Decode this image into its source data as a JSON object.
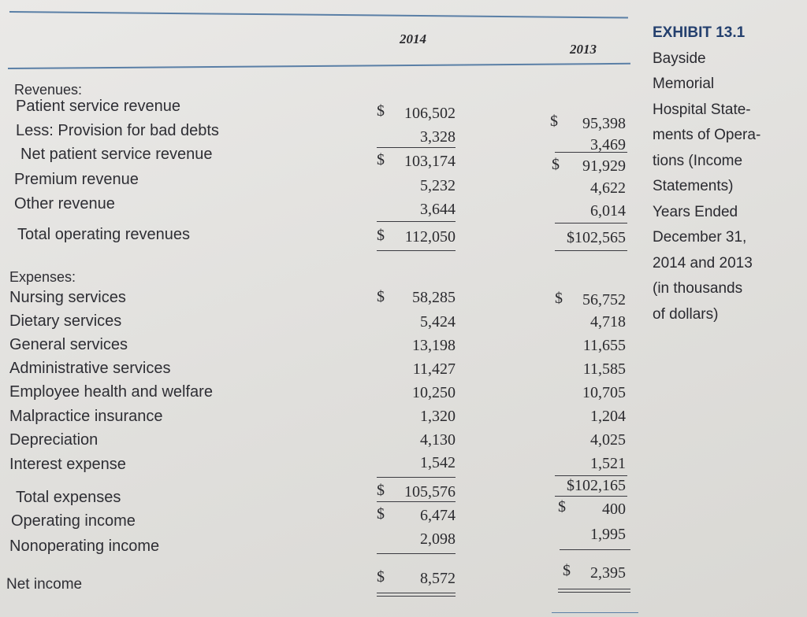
{
  "columns": {
    "y2014": "2014",
    "y2013": "2013"
  },
  "exhibit": {
    "title": "EXHIBIT 13.1",
    "lines": [
      "Bayside",
      "Memorial",
      "Hospital State-",
      "ments of Opera-",
      "tions (Income",
      "Statements)",
      "Years Ended",
      "December 31,",
      "2014 and 2013",
      "(in thousands",
      "of dollars)"
    ]
  },
  "currency_symbol": "$",
  "revenues": {
    "heading": "Revenues:",
    "rows": [
      {
        "label": "Patient service revenue",
        "y2014": "106,502",
        "y2013": "95,398"
      },
      {
        "label": "Less: Provision for bad debts",
        "y2014": "3,328",
        "y2013": "3,469"
      },
      {
        "label": "Net patient service revenue",
        "y2014": "103,174",
        "y2013": "91,929"
      },
      {
        "label": "Premium revenue",
        "y2014": "5,232",
        "y2013": "4,622"
      },
      {
        "label": "Other revenue",
        "y2014": "3,644",
        "y2013": "6,014"
      },
      {
        "label": "Total operating revenues",
        "y2014": "112,050",
        "y2013": "$102,565"
      }
    ]
  },
  "expenses": {
    "heading": "Expenses:",
    "rows": [
      {
        "label": "Nursing services",
        "y2014": "58,285",
        "y2013": "56,752"
      },
      {
        "label": "Dietary services",
        "y2014": "5,424",
        "y2013": "4,718"
      },
      {
        "label": "General services",
        "y2014": "13,198",
        "y2013": "11,655"
      },
      {
        "label": "Administrative services",
        "y2014": "11,427",
        "y2013": "11,585"
      },
      {
        "label": "Employee health and welfare",
        "y2014": "10,250",
        "y2013": "10,705"
      },
      {
        "label": "Malpractice insurance",
        "y2014": "1,320",
        "y2013": "1,204"
      },
      {
        "label": "Depreciation",
        "y2014": "4,130",
        "y2013": "4,025"
      },
      {
        "label": "Interest expense",
        "y2014": "1,542",
        "y2013": "1,521"
      }
    ]
  },
  "totals": {
    "total_expenses": {
      "label": "Total expenses",
      "y2014": "105,576",
      "y2013": "$102,165"
    },
    "operating_income": {
      "label": "Operating income",
      "y2014": "6,474",
      "y2013": "400"
    },
    "nonoperating_income": {
      "label": "Nonoperating income",
      "y2014": "2,098",
      "y2013": "1,995"
    },
    "net_income": {
      "label": "Net income",
      "y2014": "8,572",
      "y2013": "2,395"
    }
  }
}
